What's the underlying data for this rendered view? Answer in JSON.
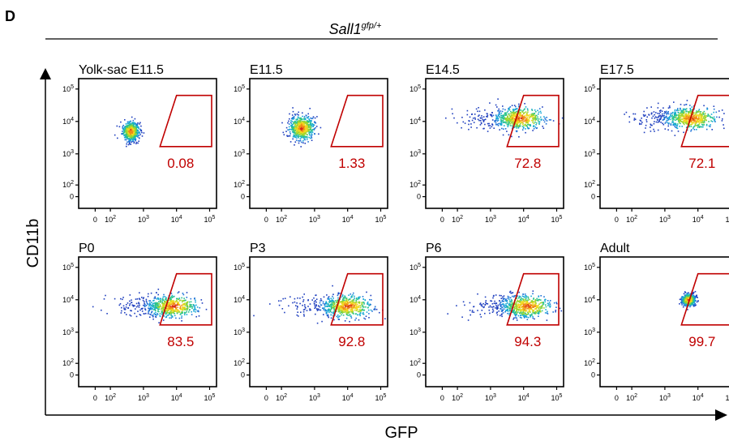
{
  "panel_letter": "D",
  "genotype": {
    "base": "Sall1",
    "sup": "gfp/+"
  },
  "xlabel": "GFP",
  "ylabel": "CD11b",
  "colors": {
    "gate": "#c00000",
    "frame": "#000000"
  },
  "y_ticks": [
    {
      "sup": "5"
    },
    {
      "sup": "4"
    },
    {
      "sup": "3"
    },
    {
      "sup": "2"
    },
    {
      "zero": "0"
    }
  ],
  "x_ticks": [
    {
      "zero": "0"
    },
    {
      "sup": "2"
    },
    {
      "sup": "3"
    },
    {
      "sup": "4"
    },
    {
      "sup": "5"
    }
  ],
  "tick_base": "10",
  "chart_data": [
    {
      "type": "scatter",
      "title": "Yolk-sac E11.5",
      "gate_percent": "0.08",
      "x_scale": "biexponential",
      "y_scale": "biexponential",
      "population_center_log10": [
        2.6,
        3.7
      ],
      "spread": "narrow"
    },
    {
      "type": "scatter",
      "title": "E11.5",
      "gate_percent": "1.33",
      "x_scale": "biexponential",
      "y_scale": "biexponential",
      "population_center_log10": [
        2.6,
        3.8
      ],
      "spread": "medium"
    },
    {
      "type": "scatter",
      "title": "E14.5",
      "gate_percent": "72.8",
      "x_scale": "biexponential",
      "y_scale": "biexponential",
      "population_center_log10": [
        3.9,
        4.1
      ],
      "spread": "wide"
    },
    {
      "type": "scatter",
      "title": "E17.5",
      "gate_percent": "72.1",
      "x_scale": "biexponential",
      "y_scale": "biexponential",
      "population_center_log10": [
        3.8,
        4.1
      ],
      "spread": "wide"
    },
    {
      "type": "scatter",
      "title": "P0",
      "gate_percent": "83.5",
      "x_scale": "biexponential",
      "y_scale": "biexponential",
      "population_center_log10": [
        3.9,
        3.8
      ],
      "spread": "wide"
    },
    {
      "type": "scatter",
      "title": "P3",
      "gate_percent": "92.8",
      "x_scale": "biexponential",
      "y_scale": "biexponential",
      "population_center_log10": [
        4.0,
        3.8
      ],
      "spread": "wide"
    },
    {
      "type": "scatter",
      "title": "P6",
      "gate_percent": "94.3",
      "x_scale": "biexponential",
      "y_scale": "biexponential",
      "population_center_log10": [
        4.1,
        3.8
      ],
      "spread": "wide"
    },
    {
      "type": "scatter",
      "title": "Adult",
      "gate_percent": "99.7",
      "x_scale": "biexponential",
      "y_scale": "biexponential",
      "population_center_log10": [
        3.7,
        4.0
      ],
      "spread": "tight"
    }
  ]
}
